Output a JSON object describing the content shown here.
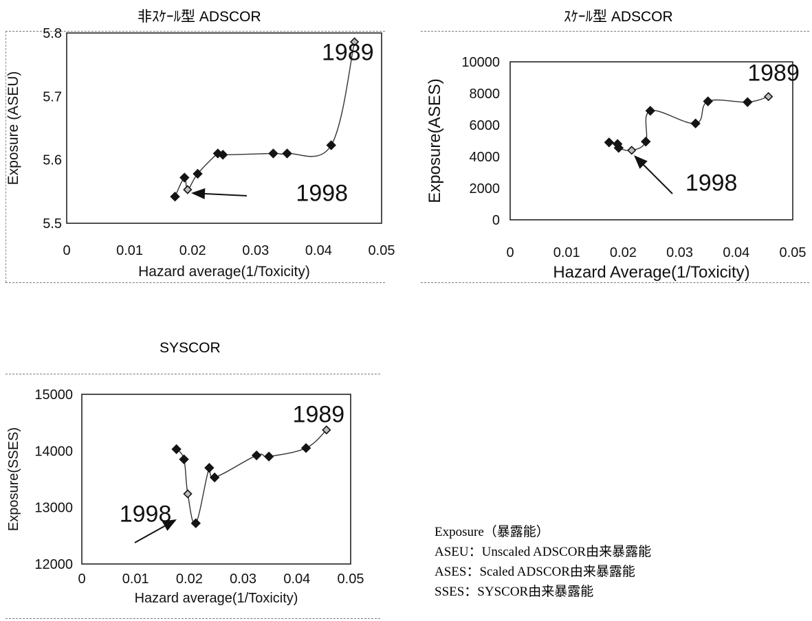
{
  "chart_data": [
    {
      "type": "line",
      "title": "非ｽｹｰﾙ型 ADSCOR",
      "xlabel": "Hazard average(1/Toxicity)",
      "ylabel": "Exposure (ASEU)",
      "xlim": [
        0,
        0.05
      ],
      "ylim": [
        5.5,
        5.8
      ],
      "xticks": [
        "0",
        "0.01",
        "0.02",
        "0.03",
        "0.04",
        "0.05"
      ],
      "yticks": [
        "5.5",
        "5.6",
        "5.7",
        "5.8"
      ],
      "series": [
        {
          "x": [
            0.0172,
            0.0187,
            0.0192,
            0.0208,
            0.024,
            0.0248,
            0.0328,
            0.035,
            0.042,
            0.0457
          ],
          "y": [
            5.542,
            5.572,
            5.553,
            5.578,
            5.61,
            5.608,
            5.61,
            5.61,
            5.623,
            5.786
          ],
          "highlight": [
            2,
            9
          ]
        }
      ],
      "annotations": [
        {
          "text": "1989",
          "x": 0.0405,
          "y": 5.757
        },
        {
          "text": "1998",
          "x": 0.0364,
          "y": 5.535
        }
      ]
    },
    {
      "type": "line",
      "title": "ｽｹｰﾙ型 ADSCOR",
      "xlabel": "Hazard Average(1/Toxicity)",
      "ylabel": "Exposure(ASES)",
      "xlim": [
        0,
        0.05
      ],
      "ylim": [
        0,
        10000
      ],
      "xticks": [
        "0",
        "0.01",
        "0.02",
        "0.03",
        "0.04",
        "0.05"
      ],
      "yticks": [
        "0",
        "2000",
        "4000",
        "6000",
        "8000",
        "10000"
      ],
      "series": [
        {
          "x": [
            0.0175,
            0.019,
            0.0192,
            0.0215,
            0.024,
            0.0248,
            0.0328,
            0.035,
            0.042,
            0.0457
          ],
          "y": [
            4900,
            4800,
            4550,
            4400,
            4950,
            6900,
            6100,
            7500,
            7450,
            7800
          ],
          "highlight": [
            3,
            9
          ]
        }
      ],
      "annotations": [
        {
          "text": "1989",
          "x": 0.042,
          "y": 8800
        },
        {
          "text": "1998",
          "x": 0.031,
          "y": 1850
        }
      ]
    },
    {
      "type": "line",
      "title": "SYSCOR",
      "xlabel": "Hazard average(1/Toxicity)",
      "ylabel": "Exposure(SSES)",
      "xlim": [
        0,
        0.05
      ],
      "ylim": [
        12000,
        15000
      ],
      "xticks": [
        "0",
        "0.01",
        "0.02",
        "0.03",
        "0.04",
        "0.05"
      ],
      "yticks": [
        "12000",
        "13000",
        "14000",
        "15000"
      ],
      "series": [
        {
          "x": [
            0.0176,
            0.019,
            0.0197,
            0.0212,
            0.0237,
            0.0247,
            0.0325,
            0.0348,
            0.0417,
            0.0455
          ],
          "y": [
            14030,
            13850,
            13240,
            12720,
            13700,
            13530,
            13920,
            13900,
            14050,
            14370
          ],
          "highlight": [
            2,
            9
          ]
        }
      ],
      "annotations": [
        {
          "text": "1989",
          "x": 0.0392,
          "y": 14510
        },
        {
          "text": "1998",
          "x": 0.007,
          "y": 12750
        }
      ]
    }
  ],
  "notes": {
    "line1": "Exposure（暴露能）",
    "line2": "ASEU：Unscaled ADSCOR由来暴露能",
    "line3": "ASES：Scaled ADSCOR由来暴露能",
    "line4": "SSES：SYSCOR由来暴露能"
  }
}
